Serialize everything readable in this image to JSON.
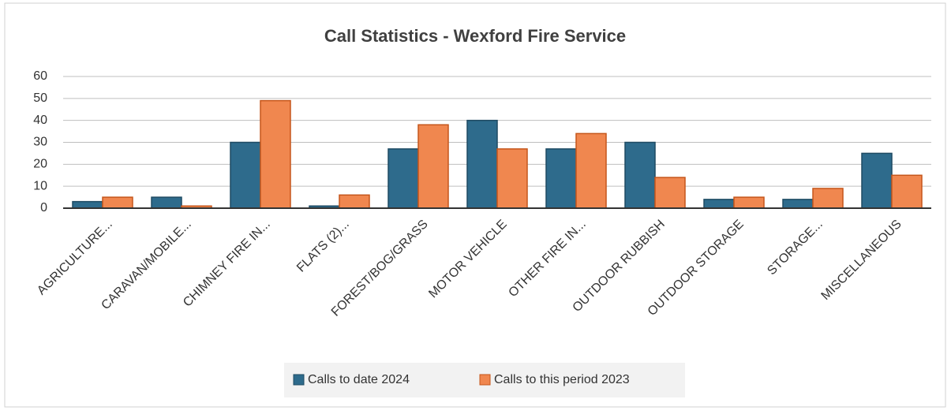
{
  "chart_data": {
    "type": "bar",
    "title": "Call Statistics - Wexford Fire Service",
    "categories": [
      "AGRICULTURE...",
      "CARAVAN/MOBILE...",
      "CHIMNEY FIRE IN...",
      "FLATS (2)...",
      "FOREST/BOG/GRASS",
      "MOTOR VEHICLE",
      "OTHER FIRE IN...",
      "OUTDOOR RUBBISH",
      "OUTDOOR STORAGE",
      "STORAGE...",
      "MISCELLANEOUS"
    ],
    "series": [
      {
        "name": "Calls to date 2024",
        "color": "#2e6b8c",
        "values": [
          3,
          5,
          30,
          1,
          27,
          40,
          27,
          30,
          4,
          4,
          25
        ]
      },
      {
        "name": "Calls to this period 2023",
        "color": "#f0874f",
        "values": [
          5,
          1,
          49,
          6,
          38,
          27,
          34,
          14,
          5,
          9,
          15
        ]
      }
    ],
    "ylim": [
      0,
      60
    ],
    "yticks": [
      0,
      10,
      20,
      30,
      40,
      50,
      60
    ],
    "grid": true,
    "legend": "bottom"
  }
}
